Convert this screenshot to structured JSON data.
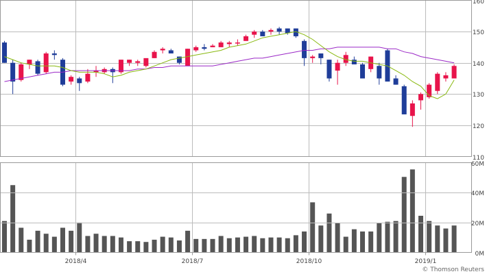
{
  "colors": {
    "up": "#e8144b",
    "down": "#1f3d99",
    "ma_short": "#88b80e",
    "ma_long": "#9a27c6",
    "volume": "#555555",
    "grid": "#bbbbbb",
    "frame": "#999999"
  },
  "credit": "© Thomson Reuters",
  "chart_data": [
    {
      "type": "candlestick",
      "title": "",
      "ylim": [
        110,
        160
      ],
      "yticks": [
        110,
        120,
        130,
        140,
        150,
        160
      ],
      "x_tick_labels": [
        "2018/4",
        "2018/7",
        "2018/10",
        "2019/1"
      ],
      "x_tick_positions": [
        8.5,
        22.5,
        36.5,
        50.5
      ],
      "series_ohlc": [
        [
          146.5,
          147,
          140,
          140
        ],
        [
          140,
          141,
          130,
          134
        ],
        [
          134.5,
          140,
          134,
          139.5
        ],
        [
          139.5,
          141,
          138,
          141
        ],
        [
          140.5,
          141,
          136,
          136.5
        ],
        [
          137,
          143.5,
          136.5,
          143
        ],
        [
          143,
          144,
          141,
          142.5
        ],
        [
          141,
          141.5,
          132.5,
          133
        ],
        [
          134,
          136,
          133,
          135.5
        ],
        [
          135,
          135.5,
          131,
          133.5
        ],
        [
          134,
          138,
          133.5,
          136.5
        ],
        [
          137,
          139,
          135.5,
          137.5
        ],
        [
          137,
          138.5,
          136.5,
          138
        ],
        [
          138,
          138.5,
          133.5,
          137
        ],
        [
          137,
          141,
          136.5,
          141
        ],
        [
          140,
          141,
          139,
          141
        ],
        [
          140,
          141,
          139,
          140.5
        ],
        [
          139,
          141,
          138.5,
          141.5
        ],
        [
          141.5,
          144,
          141.5,
          143.5
        ],
        [
          144,
          145,
          143,
          144.5
        ],
        [
          144,
          144.5,
          143,
          143
        ],
        [
          142,
          142,
          139.5,
          140
        ],
        [
          139,
          144.5,
          139,
          144.5
        ],
        [
          144,
          145.5,
          143.5,
          145
        ],
        [
          145,
          146,
          144,
          144.5
        ],
        [
          145,
          146,
          145,
          145.5
        ],
        [
          145,
          147,
          145,
          146.5
        ],
        [
          146,
          147,
          145,
          146.5
        ],
        [
          146.5,
          147.5,
          145.5,
          146.5
        ],
        [
          147,
          149,
          147,
          148.5
        ],
        [
          149,
          150.5,
          148,
          150
        ],
        [
          150,
          150.5,
          148.5,
          148.5
        ],
        [
          150,
          151,
          149,
          150.5
        ],
        [
          151,
          151.5,
          149,
          150
        ],
        [
          151,
          151,
          149,
          149.5
        ],
        [
          151,
          151,
          148,
          148.5
        ],
        [
          147,
          147.5,
          139,
          141.5
        ],
        [
          141.5,
          142.5,
          140,
          142
        ],
        [
          143,
          143,
          139.5,
          141.5
        ],
        [
          141,
          141,
          134,
          135
        ],
        [
          137.5,
          141,
          133,
          140
        ],
        [
          140,
          143.5,
          139,
          142.5
        ],
        [
          141,
          142,
          139.5,
          139.5
        ],
        [
          139.5,
          140,
          135,
          135
        ],
        [
          138,
          142,
          137,
          142
        ],
        [
          139,
          140,
          133,
          135
        ],
        [
          144,
          144.5,
          134,
          134
        ],
        [
          135,
          136,
          133,
          133
        ],
        [
          132.5,
          133,
          123.5,
          123.5
        ],
        [
          123,
          128,
          119.5,
          127
        ],
        [
          128,
          130.5,
          125,
          130
        ],
        [
          129,
          133.5,
          128.5,
          133
        ],
        [
          131,
          137,
          130,
          136.5
        ],
        [
          135,
          137,
          134,
          136
        ],
        [
          135,
          139.5,
          135,
          139
        ]
      ],
      "ma_short": [
        142,
        141,
        140,
        139.5,
        139,
        139,
        139,
        138.5,
        137.5,
        137,
        137,
        137,
        136.5,
        135.5,
        136,
        137,
        137.5,
        138,
        139,
        140,
        141,
        141.5,
        142,
        142.5,
        143,
        143.5,
        144,
        145,
        145.5,
        146,
        147,
        148,
        148.5,
        149,
        149.5,
        150,
        149,
        147.5,
        145.5,
        143.5,
        142,
        141,
        140.5,
        140.5,
        140,
        139.5,
        139,
        137.5,
        136,
        134,
        132.5,
        129.5,
        128.5,
        130,
        134.5
      ],
      "ma_long": [
        134,
        134.5,
        135,
        135.5,
        136,
        136.5,
        137,
        137,
        137.5,
        137.5,
        137.5,
        137.5,
        137.5,
        137.5,
        137.5,
        137.5,
        138,
        138,
        138.5,
        138.5,
        139,
        139,
        139,
        139,
        139,
        139,
        139.5,
        140,
        140.5,
        141,
        141.5,
        141.5,
        142,
        142.5,
        143,
        143.5,
        144,
        144,
        144.5,
        144.5,
        145,
        145,
        145,
        145,
        145,
        145,
        144.5,
        144.5,
        143.5,
        143,
        142,
        141.5,
        141,
        140.5,
        140
      ]
    },
    {
      "type": "bar",
      "title": "",
      "ylim": [
        0,
        60
      ],
      "yticks": [
        0,
        20,
        40,
        60
      ],
      "ytick_labels": [
        "0M",
        "20M",
        "40M",
        "60M"
      ],
      "values": [
        21,
        45,
        16.5,
        8.5,
        14.5,
        12.5,
        10.5,
        16.5,
        14.5,
        20,
        11,
        12.5,
        11,
        11,
        10,
        7.5,
        7.5,
        7,
        8.5,
        10.5,
        10,
        8,
        14.5,
        9,
        9,
        9,
        11,
        9.5,
        10,
        10.5,
        11,
        9.5,
        10,
        10,
        9.5,
        11.5,
        14,
        33.5,
        18,
        26,
        19.5,
        10.5,
        15.5,
        14,
        14,
        19.5,
        20.5,
        21,
        50.5,
        55.5,
        24.5,
        21,
        18,
        16,
        18
      ]
    }
  ]
}
